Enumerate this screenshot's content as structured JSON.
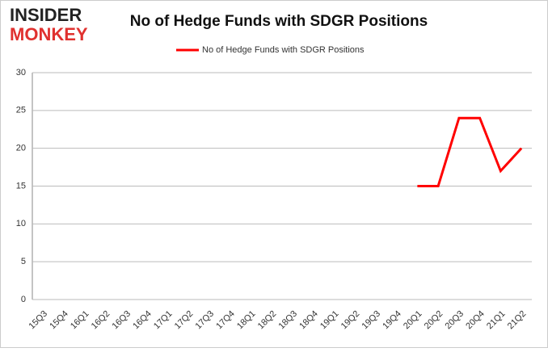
{
  "logo": {
    "line1": "INSIDER",
    "line2": "MONKEY"
  },
  "chart_data": {
    "type": "line",
    "title": "No of Hedge Funds with SDGR Positions",
    "categories": [
      "15Q3",
      "15Q4",
      "16Q1",
      "16Q2",
      "16Q3",
      "16Q4",
      "17Q1",
      "17Q2",
      "17Q3",
      "17Q4",
      "18Q1",
      "18Q2",
      "18Q3",
      "18Q4",
      "19Q1",
      "19Q2",
      "19Q3",
      "19Q4",
      "20Q1",
      "20Q2",
      "20Q3",
      "20Q4",
      "21Q1",
      "21Q2"
    ],
    "series": [
      {
        "name": "No of Hedge Funds with SDGR Positions",
        "color": "#ff0000",
        "values": [
          null,
          null,
          null,
          null,
          null,
          null,
          null,
          null,
          null,
          null,
          null,
          null,
          null,
          null,
          null,
          null,
          null,
          null,
          15,
          15,
          24,
          24,
          17,
          20
        ]
      }
    ],
    "ylim": [
      0,
      30
    ],
    "yticks": [
      0,
      5,
      10,
      15,
      20,
      25,
      30
    ],
    "grid": true
  }
}
